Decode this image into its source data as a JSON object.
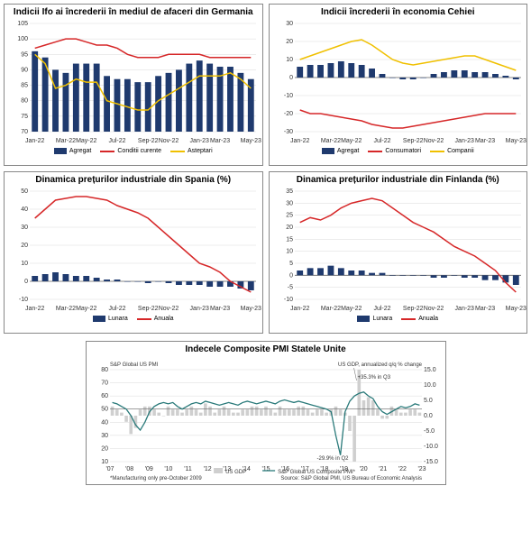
{
  "colors": {
    "bar": "#1f3a6e",
    "red": "#d62728",
    "yellow": "#f0c000",
    "grid": "#d9d9d9",
    "axis": "#666666",
    "teal": "#2a7a7a",
    "grey_bar": "#cfcfcf",
    "border": "#888888"
  },
  "x_months": [
    "Jan-22",
    "Mar-22",
    "May-22",
    "Jul-22",
    "Sep-22",
    "Nov-22",
    "Jan-23",
    "Mar-23",
    "May-23"
  ],
  "chart_germany": {
    "title": "Indicii Ifo ai încrederii în mediul de afaceri din Germania",
    "ylim": [
      70,
      105
    ],
    "ytick_step": 5,
    "bars": [
      96,
      94,
      90,
      89,
      92,
      92,
      92,
      88,
      87,
      87,
      86,
      86,
      88,
      89,
      90,
      92,
      93,
      92,
      91,
      91,
      89,
      87
    ],
    "red": [
      97,
      98,
      99,
      100,
      100,
      99,
      98,
      98,
      97,
      95,
      94,
      94,
      94,
      95,
      95,
      95,
      95,
      94,
      94,
      94,
      94,
      94
    ],
    "yellow": [
      95,
      92,
      84,
      85,
      87,
      86,
      86,
      80,
      79,
      78,
      77,
      77,
      80,
      82,
      84,
      86,
      88,
      88,
      88,
      89,
      87,
      84
    ],
    "legend": [
      "Agregat",
      "Conditii curente",
      "Asteptari"
    ]
  },
  "chart_czech": {
    "title": "Indicii încrederii în economia Cehiei",
    "ylim": [
      -30,
      30
    ],
    "ytick_step": 10,
    "bars": [
      6,
      7,
      7,
      8,
      9,
      8,
      7,
      5,
      2,
      0,
      -1,
      -1,
      0,
      2,
      3,
      4,
      4,
      3,
      3,
      2,
      1,
      -1
    ],
    "red": [
      -18,
      -20,
      -20,
      -21,
      -22,
      -23,
      -24,
      -26,
      -27,
      -28,
      -28,
      -27,
      -26,
      -25,
      -24,
      -23,
      -22,
      -21,
      -20,
      -20,
      -20,
      -20
    ],
    "yellow": [
      10,
      12,
      14,
      16,
      18,
      20,
      21,
      18,
      14,
      10,
      8,
      7,
      8,
      9,
      10,
      11,
      12,
      12,
      10,
      8,
      6,
      4
    ],
    "legend": [
      "Agregat",
      "Consumatori",
      "Companii"
    ]
  },
  "chart_spain": {
    "title": "Dinamica prețurilor industriale din Spania (%)",
    "ylim": [
      -10,
      50
    ],
    "ytick_step": 10,
    "bars": [
      3,
      4,
      5,
      4,
      3,
      3,
      2,
      1,
      1,
      0,
      0,
      -1,
      0,
      -1,
      -2,
      -2,
      -2,
      -3,
      -3,
      -3,
      -4,
      -5
    ],
    "red": [
      35,
      40,
      45,
      46,
      47,
      47,
      46,
      45,
      42,
      40,
      38,
      35,
      30,
      25,
      20,
      15,
      10,
      8,
      5,
      0,
      -3,
      -6
    ],
    "legend": [
      "Lunara",
      "Anuala"
    ]
  },
  "chart_finland": {
    "title": "Dinamica prețurilor industriale din Finlanda (%)",
    "ylim": [
      -10,
      35
    ],
    "ytick_step": 5,
    "bars": [
      2,
      3,
      3,
      4,
      3,
      2,
      2,
      1,
      1,
      0,
      0,
      0,
      0,
      -1,
      -1,
      0,
      -1,
      -1,
      -2,
      -2,
      -3,
      -4
    ],
    "red": [
      22,
      24,
      23,
      25,
      28,
      30,
      31,
      32,
      31,
      28,
      25,
      22,
      20,
      18,
      15,
      12,
      10,
      8,
      5,
      2,
      -3,
      -7
    ],
    "legend": [
      "Lunara",
      "Anuala"
    ]
  },
  "chart_pmi": {
    "title": "Indecele Composite PMI Statele Unite",
    "left_sub": "S&P Global US PMI",
    "right_sub": "US GDP, annualized q/q % change",
    "ylim_left": [
      10,
      80
    ],
    "ytick_left": 10,
    "ylim_right": [
      -15,
      15
    ],
    "ytick_right": 5,
    "x_years": [
      "'07",
      "'08",
      "'09",
      "'10",
      "'11",
      "'12",
      "'13",
      "'14",
      "'15",
      "'16",
      "'17",
      "'18",
      "'19",
      "'20",
      "'21",
      "'22",
      "'23"
    ],
    "annotation_top": "+35.3% in Q3",
    "annotation_bottom": "-29.9% in Q2",
    "footnote_left": "*Manufacturing only pre-October 2009",
    "footnote_right": "Source: S&P Global PMI, US Bureau of Economic Analysis",
    "legend": [
      "US GDP",
      "S&P Global US Composite PMI*"
    ],
    "gdp_bars": [
      3,
      2,
      1,
      -2,
      -6,
      -4,
      2,
      3,
      3,
      2,
      1,
      0,
      3,
      2,
      2,
      1,
      2,
      3,
      2,
      1,
      4,
      3,
      1,
      2,
      3,
      2,
      1,
      1,
      2,
      2,
      3,
      3,
      2,
      3,
      2,
      1,
      3,
      2,
      2,
      2,
      3,
      3,
      2,
      1,
      2,
      2,
      1,
      2,
      3,
      2,
      1,
      -5,
      -30,
      35,
      5,
      6,
      5,
      2,
      -1,
      -1,
      3,
      2,
      1,
      1,
      2,
      2,
      1
    ],
    "pmi": [
      55,
      54,
      52,
      50,
      45,
      38,
      34,
      40,
      48,
      52,
      54,
      55,
      54,
      55,
      52,
      50,
      52,
      54,
      55,
      54,
      56,
      55,
      54,
      53,
      54,
      55,
      54,
      53,
      55,
      56,
      55,
      54,
      55,
      56,
      55,
      54,
      56,
      57,
      56,
      55,
      56,
      55,
      54,
      53,
      52,
      51,
      50,
      48,
      30,
      15,
      48,
      56,
      60,
      62,
      63,
      60,
      58,
      52,
      48,
      46,
      48,
      50,
      52,
      51,
      52,
      54,
      53
    ]
  }
}
